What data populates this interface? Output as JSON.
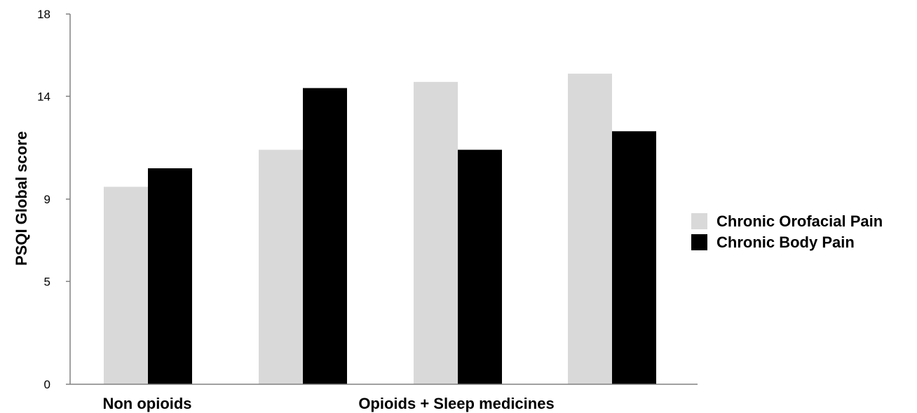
{
  "chart_data": {
    "type": "bar",
    "title": "",
    "xlabel": "",
    "ylabel": "PSQI Global score",
    "ylim": [
      0,
      18
    ],
    "yticks": [
      0,
      5,
      9,
      14,
      18
    ],
    "group_labels": [
      "Non opioids",
      "Opioids + Sleep medicines"
    ],
    "categories": [
      "",
      "",
      "",
      ""
    ],
    "series": [
      {
        "name": "Chronic Orofacial Pain",
        "color": "#d9d9d9",
        "values": [
          9.6,
          11.4,
          14.7,
          15.1
        ]
      },
      {
        "name": "Chronic Body Pain",
        "color": "#000000",
        "values": [
          10.5,
          14.4,
          11.4,
          12.3
        ]
      }
    ],
    "grid": false,
    "legend_position": "right"
  }
}
